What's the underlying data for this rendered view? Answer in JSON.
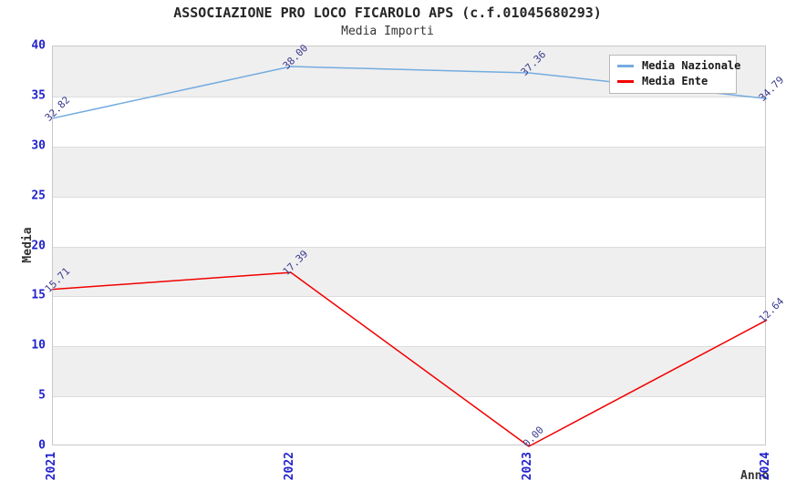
{
  "chart_data": {
    "type": "line",
    "title": "ASSOCIAZIONE PRO LOCO FICAROLO APS (c.f.01045680293)",
    "subtitle": "Media Importi",
    "x": [
      "2021",
      "2022",
      "2023",
      "2024"
    ],
    "xlabel": "Anno",
    "ylabel": "Media",
    "ylim": [
      0,
      40
    ],
    "yticks": [
      0,
      5,
      10,
      15,
      20,
      25,
      30,
      35,
      40
    ],
    "grid": "horizontal-bands-every-5",
    "legend_position": "top-right",
    "series": [
      {
        "name": "Media Nazionale",
        "color": "#74acdf",
        "values": [
          32.82,
          38.0,
          37.36,
          34.79
        ],
        "point_labels": [
          "32.82",
          "38.00",
          "37.36",
          "34.79"
        ]
      },
      {
        "name": "Media Ente",
        "color": "#f20000",
        "values": [
          15.71,
          17.39,
          0.0,
          12.64
        ],
        "point_labels": [
          "15.71",
          "17.39",
          "0.00",
          "12.64"
        ]
      }
    ]
  },
  "colors": {
    "tick_label": "#2222cc",
    "data_label": "#3a3a90",
    "axis_title": "#333333",
    "band_gray": "#efefef",
    "gridline": "#dcdcdc",
    "plot_border": "#c8c8c8",
    "legend_border": "#b8b8b8",
    "background": "#ffffff",
    "series_nazionale": "#74acdf",
    "series_ente": "#f20000"
  }
}
